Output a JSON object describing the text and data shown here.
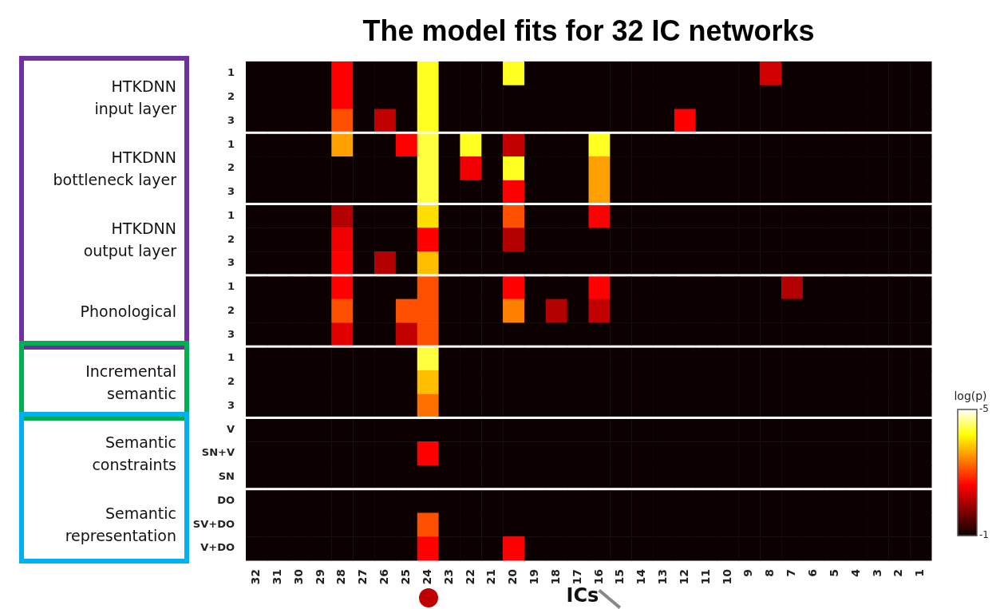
{
  "chart_data": {
    "type": "heatmap",
    "title": "The model fits for 32 IC networks",
    "xlabel": "ICs",
    "clabel": "log(p)",
    "annotations": [
      "HTKDNN\ninput layer",
      "HTKDNN\nbottleneck layer",
      "HTKDNN\noutput layer",
      "Phonological",
      "Incremental\nsemantic",
      "Semantic\nconstraints",
      "Semantic\nrepresentation"
    ],
    "categories": [
      "32",
      "31",
      "30",
      "29",
      "28",
      "27",
      "26",
      "25",
      "24",
      "23",
      "22",
      "21",
      "20",
      "19",
      "18",
      "17",
      "16",
      "15",
      "14",
      "13",
      "12",
      "11",
      "10",
      "9",
      "8",
      "7",
      "6",
      "5",
      "4",
      "3",
      "2",
      "1"
    ],
    "y_categories": [
      "1",
      "2",
      "3",
      "1",
      "2",
      "3",
      "1",
      "2",
      "3",
      "1",
      "2",
      "3",
      "1",
      "2",
      "3",
      "V",
      "SN+V",
      "SN",
      "DO",
      "SV+DO",
      "V+DO"
    ],
    "clim": [
      -5,
      -1
    ],
    "cticks": [
      -5,
      -1
    ],
    "cells": [
      [
        -1,
        -1,
        -1,
        -1,
        -2.6,
        -1,
        -1,
        -1,
        -4.3,
        -1,
        -1,
        -1,
        -4.3,
        -1,
        -1,
        -1,
        -1,
        -1,
        -1,
        -1,
        -1,
        -1,
        -1,
        -1,
        -2.3,
        -1,
        -1,
        -1,
        -1,
        -1,
        -1,
        -1
      ],
      [
        -1,
        -1,
        -1,
        -1,
        -2.6,
        -1,
        -1,
        -1,
        -4.3,
        -1,
        -1,
        -1,
        -1,
        -1,
        -1,
        -1,
        -1,
        -1,
        -1,
        -1,
        -1,
        -1,
        -1,
        -1,
        -1,
        -1,
        -1,
        -1,
        -1,
        -1,
        -1,
        -1
      ],
      [
        -1,
        -1,
        -1,
        -1,
        -3.1,
        -1,
        -2.2,
        -1,
        -4.3,
        -1,
        -1,
        -1,
        -1,
        -1,
        -1,
        -1,
        -1,
        -1,
        -1,
        -1,
        -2.6,
        -1,
        -1,
        -1,
        -1,
        -1,
        -1,
        -1,
        -1,
        -1,
        -1,
        -1
      ],
      [
        -1,
        -1,
        -1,
        -1,
        -3.6,
        -1,
        -1,
        -2.6,
        -4.4,
        -1,
        -4.3,
        -1,
        -2.2,
        -1,
        -1,
        -1,
        -4.3,
        -1,
        -1,
        -1,
        -1,
        -1,
        -1,
        -1,
        -1,
        -1,
        -1,
        -1,
        -1,
        -1,
        -1,
        -1
      ],
      [
        -1,
        -1,
        -1,
        -1,
        -1,
        -1,
        -1,
        -1,
        -4.4,
        -1,
        -2.5,
        -1,
        -4.3,
        -1,
        -1,
        -1,
        -3.6,
        -1,
        -1,
        -1,
        -1,
        -1,
        -1,
        -1,
        -1,
        -1,
        -1,
        -1,
        -1,
        -1,
        -1,
        -1
      ],
      [
        -1,
        -1,
        -1,
        -1,
        -1,
        -1,
        -1,
        -1,
        -4.4,
        -1,
        -1,
        -1,
        -2.6,
        -1,
        -1,
        -1,
        -3.6,
        -1,
        -1,
        -1,
        -1,
        -1,
        -1,
        -1,
        -1,
        -1,
        -1,
        -1,
        -1,
        -1,
        -1,
        -1
      ],
      [
        -1,
        -1,
        -1,
        -1,
        -2.1,
        -1,
        -1,
        -1,
        -4,
        -1,
        -1,
        -1,
        -3.1,
        -1,
        -1,
        -1,
        -2.6,
        -1,
        -1,
        -1,
        -1,
        -1,
        -1,
        -1,
        -1,
        -1,
        -1,
        -1,
        -1,
        -1,
        -1,
        -1
      ],
      [
        -1,
        -1,
        -1,
        -1,
        -2.5,
        -1,
        -1,
        -1,
        -2.6,
        -1,
        -1,
        -1,
        -2.1,
        -1,
        -1,
        -1,
        -1,
        -1,
        -1,
        -1,
        -1,
        -1,
        -1,
        -1,
        -1,
        -1,
        -1,
        -1,
        -1,
        -1,
        -1,
        -1
      ],
      [
        -1,
        -1,
        -1,
        -1,
        -2.6,
        -1,
        -2.1,
        -1,
        -3.8,
        -1,
        -1,
        -1,
        -1,
        -1,
        -1,
        -1,
        -1,
        -1,
        -1,
        -1,
        -1,
        -1,
        -1,
        -1,
        -1,
        -1,
        -1,
        -1,
        -1,
        -1,
        -1,
        -1
      ],
      [
        -1,
        -1,
        -1,
        -1,
        -2.6,
        -1,
        -1,
        -1,
        -3.1,
        -1,
        -1,
        -1,
        -2.6,
        -1,
        -1,
        -1,
        -2.6,
        -1,
        -1,
        -1,
        -1,
        -1,
        -1,
        -1,
        -1,
        -2.1,
        -1,
        -1,
        -1,
        -1,
        -1,
        -1
      ],
      [
        -1,
        -1,
        -1,
        -1,
        -3.1,
        -1,
        -1,
        -3.1,
        -3.1,
        -1,
        -1,
        -1,
        -3.4,
        -1,
        -2.1,
        -1,
        -2.2,
        -1,
        -1,
        -1,
        -1,
        -1,
        -1,
        -1,
        -1,
        -1,
        -1,
        -1,
        -1,
        -1,
        -1,
        -1
      ],
      [
        -1,
        -1,
        -1,
        -1,
        -2.4,
        -1,
        -1,
        -2.2,
        -3.1,
        -1,
        -1,
        -1,
        -1,
        -1,
        -1,
        -1,
        -1,
        -1,
        -1,
        -1,
        -1,
        -1,
        -1,
        -1,
        -1,
        -1,
        -1,
        -1,
        -1,
        -1,
        -1,
        -1
      ],
      [
        -1,
        -1,
        -1,
        -1,
        -1,
        -1,
        -1,
        -1,
        -4.4,
        -1,
        -1,
        -1,
        -1,
        -1,
        -1,
        -1,
        -1,
        -1,
        -1,
        -1,
        -1,
        -1,
        -1,
        -1,
        -1,
        -1,
        -1,
        -1,
        -1,
        -1,
        -1,
        -1
      ],
      [
        -1,
        -1,
        -1,
        -1,
        -1,
        -1,
        -1,
        -1,
        -3.8,
        -1,
        -1,
        -1,
        -1,
        -1,
        -1,
        -1,
        -1,
        -1,
        -1,
        -1,
        -1,
        -1,
        -1,
        -1,
        -1,
        -1,
        -1,
        -1,
        -1,
        -1,
        -1,
        -1
      ],
      [
        -1,
        -1,
        -1,
        -1,
        -1,
        -1,
        -1,
        -1,
        -3.3,
        -1,
        -1,
        -1,
        -1,
        -1,
        -1,
        -1,
        -1,
        -1,
        -1,
        -1,
        -1,
        -1,
        -1,
        -1,
        -1,
        -1,
        -1,
        -1,
        -1,
        -1,
        -1,
        -1
      ],
      [
        -1,
        -1,
        -1,
        -1,
        -1,
        -1,
        -1,
        -1,
        -1,
        -1,
        -1,
        -1,
        -1,
        -1,
        -1,
        -1,
        -1,
        -1,
        -1,
        -1,
        -1,
        -1,
        -1,
        -1,
        -1,
        -1,
        -1,
        -1,
        -1,
        -1,
        -1,
        -1
      ],
      [
        -1,
        -1,
        -1,
        -1,
        -1,
        -1,
        -1,
        -1,
        -2.6,
        -1,
        -1,
        -1,
        -1,
        -1,
        -1,
        -1,
        -1,
        -1,
        -1,
        -1,
        -1,
        -1,
        -1,
        -1,
        -1,
        -1,
        -1,
        -1,
        -1,
        -1,
        -1,
        -1
      ],
      [
        -1,
        -1,
        -1,
        -1,
        -1,
        -1,
        -1,
        -1,
        -1,
        -1,
        -1,
        -1,
        -1,
        -1,
        -1,
        -1,
        -1,
        -1,
        -1,
        -1,
        -1,
        -1,
        -1,
        -1,
        -1,
        -1,
        -1,
        -1,
        -1,
        -1,
        -1,
        -1
      ],
      [
        -1,
        -1,
        -1,
        -1,
        -1,
        -1,
        -1,
        -1,
        -1,
        -1,
        -1,
        -1,
        -1,
        -1,
        -1,
        -1,
        -1,
        -1,
        -1,
        -1,
        -1,
        -1,
        -1,
        -1,
        -1,
        -1,
        -1,
        -1,
        -1,
        -1,
        -1,
        -1
      ],
      [
        -1,
        -1,
        -1,
        -1,
        -1,
        -1,
        -1,
        -1,
        -3.1,
        -1,
        -1,
        -1,
        -1,
        -1,
        -1,
        -1,
        -1,
        -1,
        -1,
        -1,
        -1,
        -1,
        -1,
        -1,
        -1,
        -1,
        -1,
        -1,
        -1,
        -1,
        -1,
        -1
      ],
      [
        -1,
        -1,
        -1,
        -1,
        -1,
        -1,
        -1,
        -1,
        -2.6,
        -1,
        -1,
        -1,
        -2.6,
        -1,
        -1,
        -1,
        -1,
        -1,
        -1,
        -1,
        -1,
        -1,
        -1,
        -1,
        -1,
        -1,
        -1,
        -1,
        -1,
        -1,
        -1,
        -1
      ]
    ]
  }
}
